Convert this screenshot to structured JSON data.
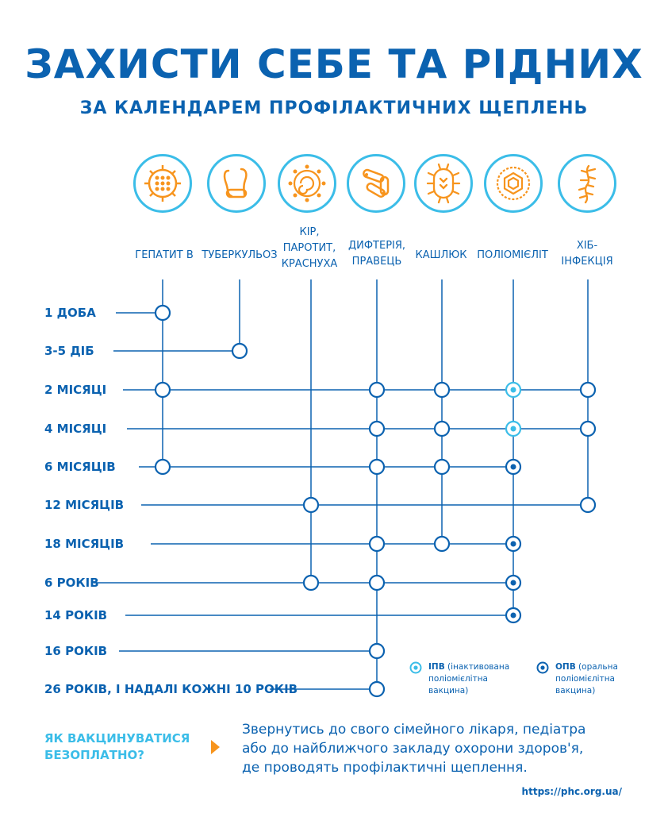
{
  "header": {
    "title": "ЗАХИСТИ СЕБЕ ТА РІДНИХ",
    "subtitle": "ЗА КАЛЕНДАРЕМ ПРОФІЛАКТИЧНИХ ЩЕПЛЕНЬ"
  },
  "colors": {
    "dark_blue": "#0b62b0",
    "light_blue": "#3bbde8",
    "orange": "#f7941d"
  },
  "diseases": [
    {
      "icon": "hepatitis-b-virus-icon",
      "lines": [
        "ГЕПАТИТ В"
      ]
    },
    {
      "icon": "tuberculosis-bacteria-icon",
      "lines": [
        "ТУБЕРКУЛЬОЗ"
      ]
    },
    {
      "icon": "measles-virus-icon",
      "lines": [
        "КІР,",
        "ПАРОТИТ,",
        "КРАСНУХА"
      ]
    },
    {
      "icon": "diphtheria-bacteria-icon",
      "lines": [
        "ДИФТЕРІЯ,",
        "ПРАВЕЦЬ"
      ]
    },
    {
      "icon": "pertussis-bacterium-icon",
      "lines": [
        "КАШЛЮК"
      ]
    },
    {
      "icon": "polio-virus-icon",
      "lines": [
        "ПОЛІОМІЄЛІТ"
      ]
    },
    {
      "icon": "hib-bacterium-icon",
      "lines": [
        "ХІБ-",
        "ІНФЕКЦІЯ"
      ]
    }
  ],
  "ages": [
    {
      "label": "1 ДОБА",
      "doses": [
        "open",
        "",
        "",
        "",
        "",
        "",
        ""
      ]
    },
    {
      "label": "3-5 ДІБ",
      "doses": [
        "",
        "open",
        "",
        "",
        "",
        "",
        ""
      ]
    },
    {
      "label": "2 МІСЯЦІ",
      "doses": [
        "open",
        "",
        "",
        "open",
        "open",
        "ipv",
        "open"
      ]
    },
    {
      "label": "4 МІСЯЦІ",
      "doses": [
        "",
        "",
        "",
        "open",
        "open",
        "ipv",
        "open"
      ]
    },
    {
      "label": "6 МІСЯЦІВ",
      "doses": [
        "open",
        "",
        "",
        "open",
        "open",
        "opv",
        ""
      ]
    },
    {
      "label": "12 МІСЯЦІВ",
      "doses": [
        "",
        "",
        "open",
        "",
        "",
        "",
        "open"
      ]
    },
    {
      "label": "18 МІСЯЦІВ",
      "doses": [
        "",
        "",
        "",
        "open",
        "open",
        "opv",
        ""
      ]
    },
    {
      "label": "6 РОКІВ",
      "doses": [
        "",
        "",
        "open",
        "open",
        "",
        "opv",
        ""
      ]
    },
    {
      "label": "14 РОКІВ",
      "doses": [
        "",
        "",
        "",
        "",
        "",
        "opv",
        ""
      ]
    },
    {
      "label": "16 РОКІВ",
      "doses": [
        "",
        "",
        "",
        "open",
        "",
        "",
        ""
      ]
    },
    {
      "label": "26 РОКІВ, І НАДАЛІ КОЖНІ 10 РОКІВ",
      "doses": [
        "",
        "",
        "",
        "open",
        "",
        "",
        ""
      ]
    }
  ],
  "legend": {
    "ipv_abbr": "ІПВ",
    "ipv_text_1": " (інактивована",
    "ipv_text_2": "поліомієлітна",
    "ipv_text_3": "вакцина)",
    "opv_abbr": "ОПВ",
    "opv_text_1": " (оральна",
    "opv_text_2": "поліомієлітна",
    "opv_text_3": "вакцина)"
  },
  "faq": {
    "question_1": "ЯК ВАКЦИНУВАТИСЯ",
    "question_2": "БЕЗОПЛАТНО?",
    "answer_1": "Звернутись до свого сімейного лікаря, педіатра",
    "answer_2": "або до найближчого закладу охорони здоров'я,",
    "answer_3": "де проводять профілактичні щеплення."
  },
  "footer": {
    "url": "https://phc.org.ua/"
  }
}
